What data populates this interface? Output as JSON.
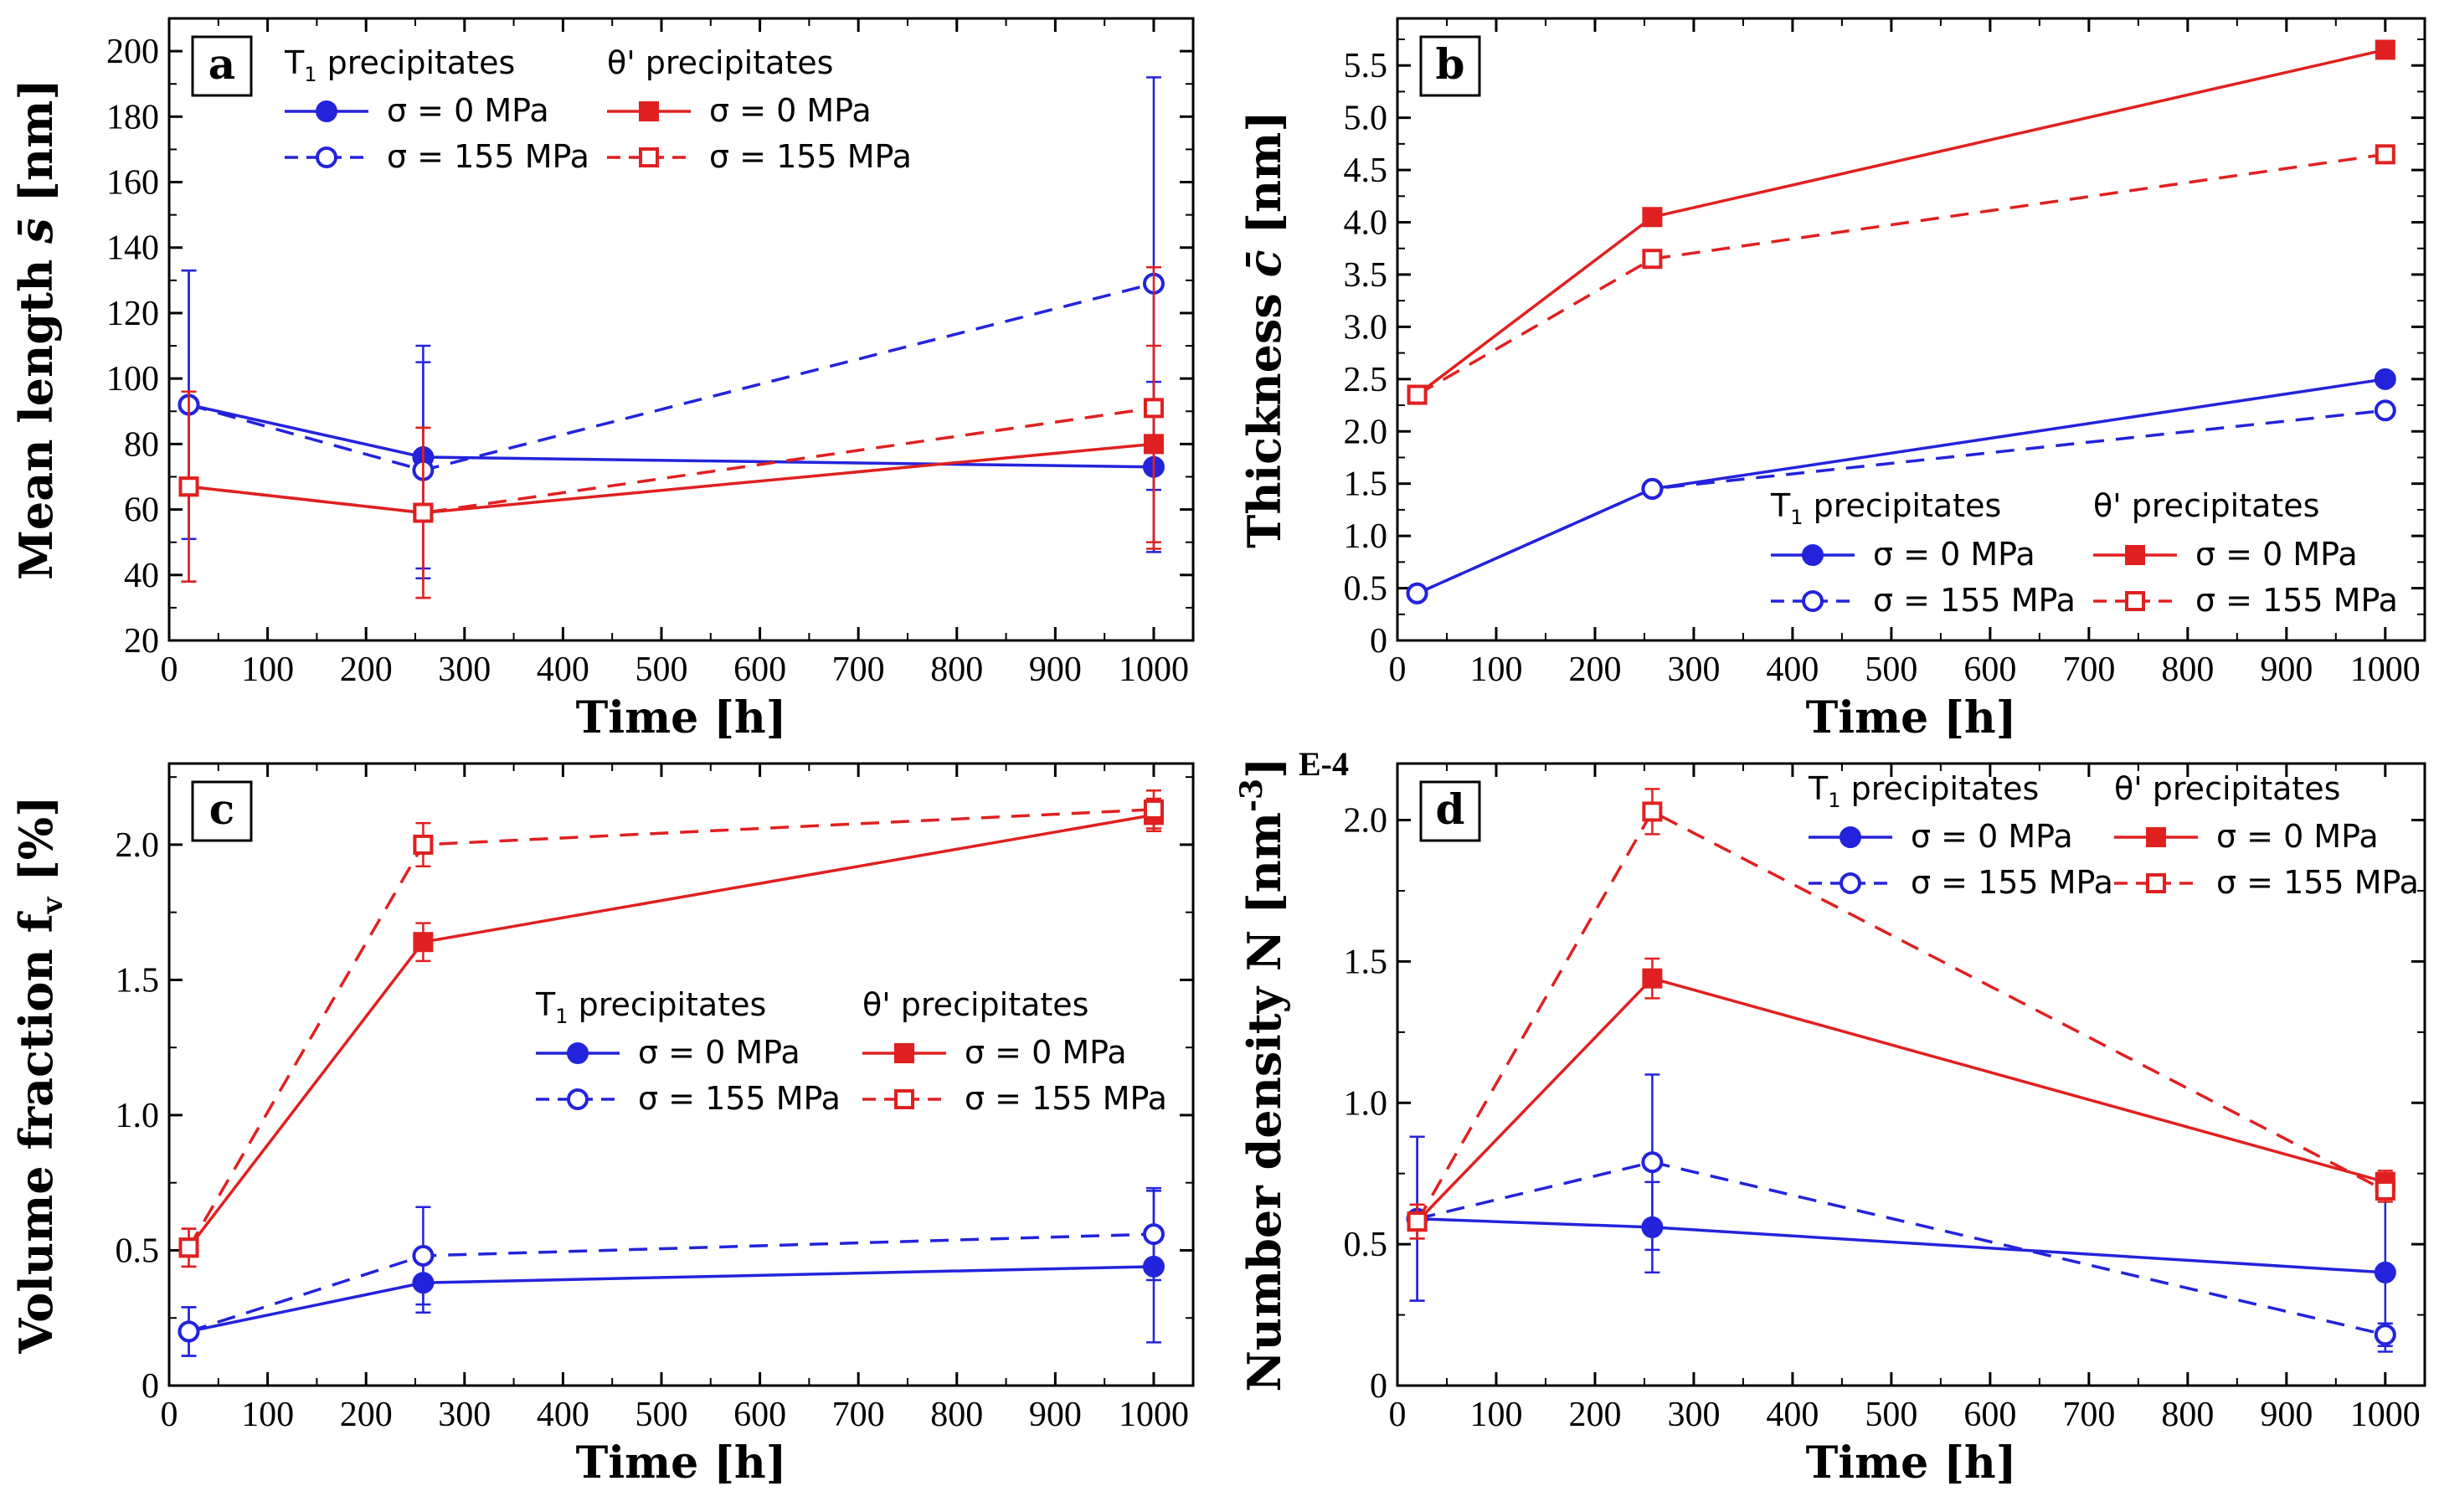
{
  "colors": {
    "t1": "#2323dc",
    "theta": "#e02020",
    "frame": "#000000"
  },
  "legend": {
    "t1_title": "T",
    "t1_title_sub": "1",
    "t1_title_rest": " precipitates",
    "theta_title": "θ' precipitates",
    "s0": "σ = 0 MPa",
    "s155": "σ = 155 MPa"
  },
  "chart_data": [
    {
      "id": "a",
      "tag": "a",
      "type": "line",
      "title": "",
      "xlabel": "Time [h]",
      "ylabel": "Mean length s̄ [nm]",
      "ylabel_main": "Mean length ",
      "ylabel_sym": "s̄",
      "ylabel_unit": " [nm]",
      "xlim": [
        0,
        1040
      ],
      "ylim": [
        20,
        210
      ],
      "x_ticks": [
        0,
        100,
        200,
        300,
        400,
        500,
        600,
        700,
        800,
        900,
        1000
      ],
      "y_ticks": [
        20,
        40,
        60,
        80,
        100,
        120,
        140,
        160,
        180,
        200
      ],
      "y_tick_labels": [
        "20",
        "40",
        "60",
        "80",
        "100",
        "120",
        "140",
        "160",
        "180",
        "200"
      ],
      "y_axis_prefix": "",
      "legend_pos": "top",
      "series": [
        {
          "name": "T1 σ = 0 MPa",
          "family": "t1",
          "stress": "0",
          "x": [
            20,
            258,
            1000
          ],
          "y": [
            92,
            76,
            73
          ],
          "err": [
            41,
            34,
            26
          ]
        },
        {
          "name": "T1 σ = 155 MPa",
          "family": "t1",
          "stress": "155",
          "x": [
            20,
            258,
            1000
          ],
          "y": [
            92,
            72,
            129
          ],
          "err": [
            41,
            33,
            63
          ]
        },
        {
          "name": "θ' σ = 0 MPa",
          "family": "theta",
          "stress": "0",
          "x": [
            20,
            258,
            1000
          ],
          "y": [
            67,
            59,
            80
          ],
          "err": [
            29,
            26,
            30
          ]
        },
        {
          "name": "θ' σ = 155 MPa",
          "family": "theta",
          "stress": "155",
          "x": [
            20,
            258,
            1000
          ],
          "y": [
            67,
            59,
            91
          ],
          "err": [
            29,
            26,
            43
          ]
        }
      ]
    },
    {
      "id": "b",
      "tag": "b",
      "type": "line",
      "title": "",
      "xlabel": "Time [h]",
      "ylabel": "Thickness c̄ [nm]",
      "ylabel_main": "Thickness ",
      "ylabel_sym": "c̄",
      "ylabel_unit": " [nm]",
      "xlim": [
        0,
        1040
      ],
      "ylim": [
        0,
        5.95
      ],
      "x_ticks": [
        0,
        100,
        200,
        300,
        400,
        500,
        600,
        700,
        800,
        900,
        1000
      ],
      "y_ticks": [
        0,
        0.5,
        1.0,
        1.5,
        2.0,
        2.5,
        3.0,
        3.5,
        4.0,
        4.5,
        5.0,
        5.5
      ],
      "y_tick_labels": [
        "0",
        "0.5",
        "1.0",
        "1.5",
        "2.0",
        "2.5",
        "3.0",
        "3.5",
        "4.0",
        "4.5",
        "5.0",
        "5.5"
      ],
      "y_axis_prefix": "",
      "legend_pos": "bottom-right",
      "series": [
        {
          "name": "T1 σ = 0 MPa",
          "family": "t1",
          "stress": "0",
          "x": [
            20,
            258,
            1000
          ],
          "y": [
            0.45,
            1.45,
            2.5
          ],
          "err": [
            0,
            0,
            0
          ]
        },
        {
          "name": "T1 σ = 155 MPa",
          "family": "t1",
          "stress": "155",
          "x": [
            20,
            258,
            1000
          ],
          "y": [
            0.45,
            1.45,
            2.2
          ],
          "err": [
            0,
            0,
            0
          ]
        },
        {
          "name": "θ' σ = 0 MPa",
          "family": "theta",
          "stress": "0",
          "x": [
            20,
            258,
            1000
          ],
          "y": [
            2.35,
            4.05,
            5.65
          ],
          "err": [
            0,
            0,
            0
          ]
        },
        {
          "name": "θ' σ = 155 MPa",
          "family": "theta",
          "stress": "155",
          "x": [
            20,
            258,
            1000
          ],
          "y": [
            2.35,
            3.65,
            4.65
          ],
          "err": [
            0,
            0,
            0
          ]
        }
      ]
    },
    {
      "id": "c",
      "tag": "c",
      "type": "line",
      "title": "",
      "xlabel": "Time [h]",
      "ylabel": "Volume fraction fv [%]",
      "ylabel_main": "Volume fraction f",
      "ylabel_sym": "v",
      "ylabel_unit": " [%]",
      "xlim": [
        0,
        1040
      ],
      "ylim": [
        0,
        2.3
      ],
      "x_ticks": [
        0,
        100,
        200,
        300,
        400,
        500,
        600,
        700,
        800,
        900,
        1000
      ],
      "y_ticks": [
        0,
        0.5,
        1.0,
        1.5,
        2.0
      ],
      "y_tick_labels": [
        "0",
        "0.5",
        "1.0",
        "1.5",
        "2.0"
      ],
      "y_axis_prefix": "",
      "legend_pos": "middle-right",
      "series": [
        {
          "name": "T1 σ = 0 MPa",
          "family": "t1",
          "stress": "0",
          "x": [
            20,
            258,
            1000
          ],
          "y": [
            0.2,
            0.38,
            0.44
          ],
          "err": [
            0.09,
            0.11,
            0.28
          ]
        },
        {
          "name": "T1 σ = 155 MPa",
          "family": "t1",
          "stress": "155",
          "x": [
            20,
            258,
            1000
          ],
          "y": [
            0.2,
            0.48,
            0.56
          ],
          "err": [
            0.09,
            0.18,
            0.17
          ]
        },
        {
          "name": "θ' σ = 0 MPa",
          "family": "theta",
          "stress": "0",
          "x": [
            20,
            258,
            1000
          ],
          "y": [
            0.51,
            1.64,
            2.11
          ],
          "err": [
            0.07,
            0.07,
            0.06
          ]
        },
        {
          "name": "θ' σ = 155 MPa",
          "family": "theta",
          "stress": "155",
          "x": [
            20,
            258,
            1000
          ],
          "y": [
            0.51,
            2.0,
            2.13
          ],
          "err": [
            0.07,
            0.08,
            0.07
          ]
        }
      ]
    },
    {
      "id": "d",
      "tag": "d",
      "type": "line",
      "title": "",
      "xlabel": "Time [h]",
      "ylabel": "Number density N [nm-3]",
      "ylabel_main": "Number density N [nm",
      "ylabel_sym": "-3",
      "ylabel_unit": "]",
      "xlim": [
        0,
        1040
      ],
      "ylim": [
        0,
        2.2
      ],
      "x_ticks": [
        0,
        100,
        200,
        300,
        400,
        500,
        600,
        700,
        800,
        900,
        1000
      ],
      "y_ticks": [
        0,
        0.5,
        1.0,
        1.5,
        2.0
      ],
      "y_tick_labels": [
        "0",
        "0.5",
        "1.0",
        "1.5",
        "2.0"
      ],
      "y_axis_prefix": "E-4",
      "legend_pos": "top-right",
      "series": [
        {
          "name": "T1 σ = 0 MPa",
          "family": "t1",
          "stress": "0",
          "x": [
            20,
            258,
            1000
          ],
          "y": [
            0.59,
            0.56,
            0.4
          ],
          "err": [
            0.29,
            0.16,
            0.28
          ]
        },
        {
          "name": "T1 σ = 155 MPa",
          "family": "t1",
          "stress": "155",
          "x": [
            20,
            258,
            1000
          ],
          "y": [
            0.59,
            0.79,
            0.18
          ],
          "err": [
            0.29,
            0.31,
            0.04
          ]
        },
        {
          "name": "θ' σ = 0 MPa",
          "family": "theta",
          "stress": "0",
          "x": [
            20,
            258,
            1000
          ],
          "y": [
            0.58,
            1.44,
            0.72
          ],
          "err": [
            0.06,
            0.07,
            0.04
          ]
        },
        {
          "name": "θ' σ = 155 MPa",
          "family": "theta",
          "stress": "155",
          "x": [
            20,
            258,
            1000
          ],
          "y": [
            0.58,
            2.03,
            0.69
          ],
          "err": [
            0.06,
            0.08,
            0.04
          ]
        }
      ]
    }
  ]
}
